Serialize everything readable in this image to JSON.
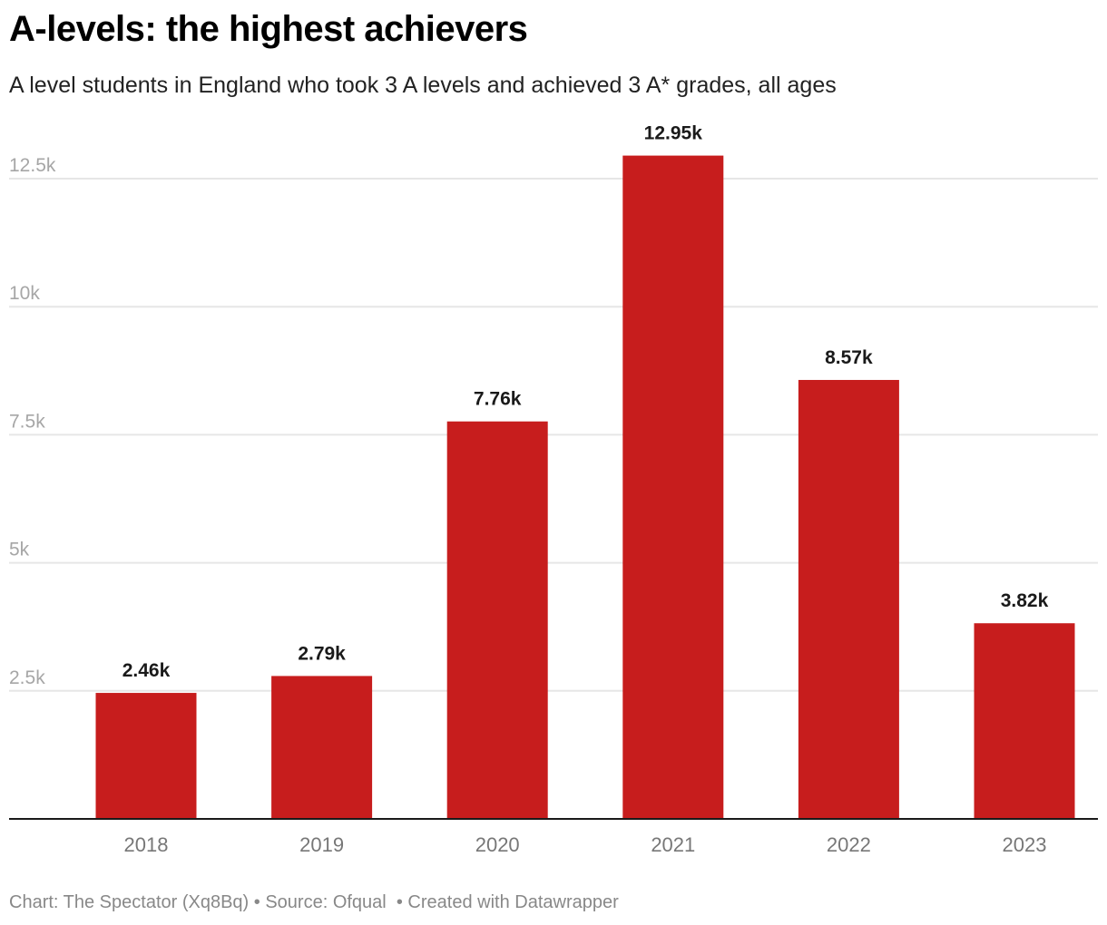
{
  "title": "A-levels: the highest achievers",
  "subtitle": "A level students in England who took 3 A levels and achieved 3 A* grades, all ages",
  "colors": {
    "bar": "#c71d1d",
    "grid": "#e6e6e6",
    "baseline": "#1a1a1a",
    "tick_label": "#a6a6a6",
    "category_label": "#777777",
    "value_label": "#1a1a1a"
  },
  "footer": {
    "chart_credit": "Chart: The Spectator (Xq8Bq)",
    "source": " • Source: Ofqual ",
    "created_with": " • Created with Datawrapper"
  },
  "chart_data": {
    "type": "bar",
    "title": "A-levels: the highest achievers",
    "subtitle": "A level students in England who took 3 A levels and achieved 3 A* grades, all ages",
    "xlabel": "",
    "ylabel": "",
    "categories": [
      "2018",
      "2019",
      "2020",
      "2021",
      "2022",
      "2023"
    ],
    "values": [
      2460,
      2790,
      7760,
      12950,
      8570,
      3820
    ],
    "value_labels": [
      "2.46k",
      "2.79k",
      "7.76k",
      "12.95k",
      "8.57k",
      "3.82k"
    ],
    "ylim": [
      0,
      12500
    ],
    "yticks": [
      2500,
      5000,
      7500,
      10000,
      12500
    ],
    "ytick_labels": [
      "2.5k",
      "5k",
      "7.5k",
      "10k",
      "12.5k"
    ],
    "grid": true,
    "legend": "none"
  }
}
